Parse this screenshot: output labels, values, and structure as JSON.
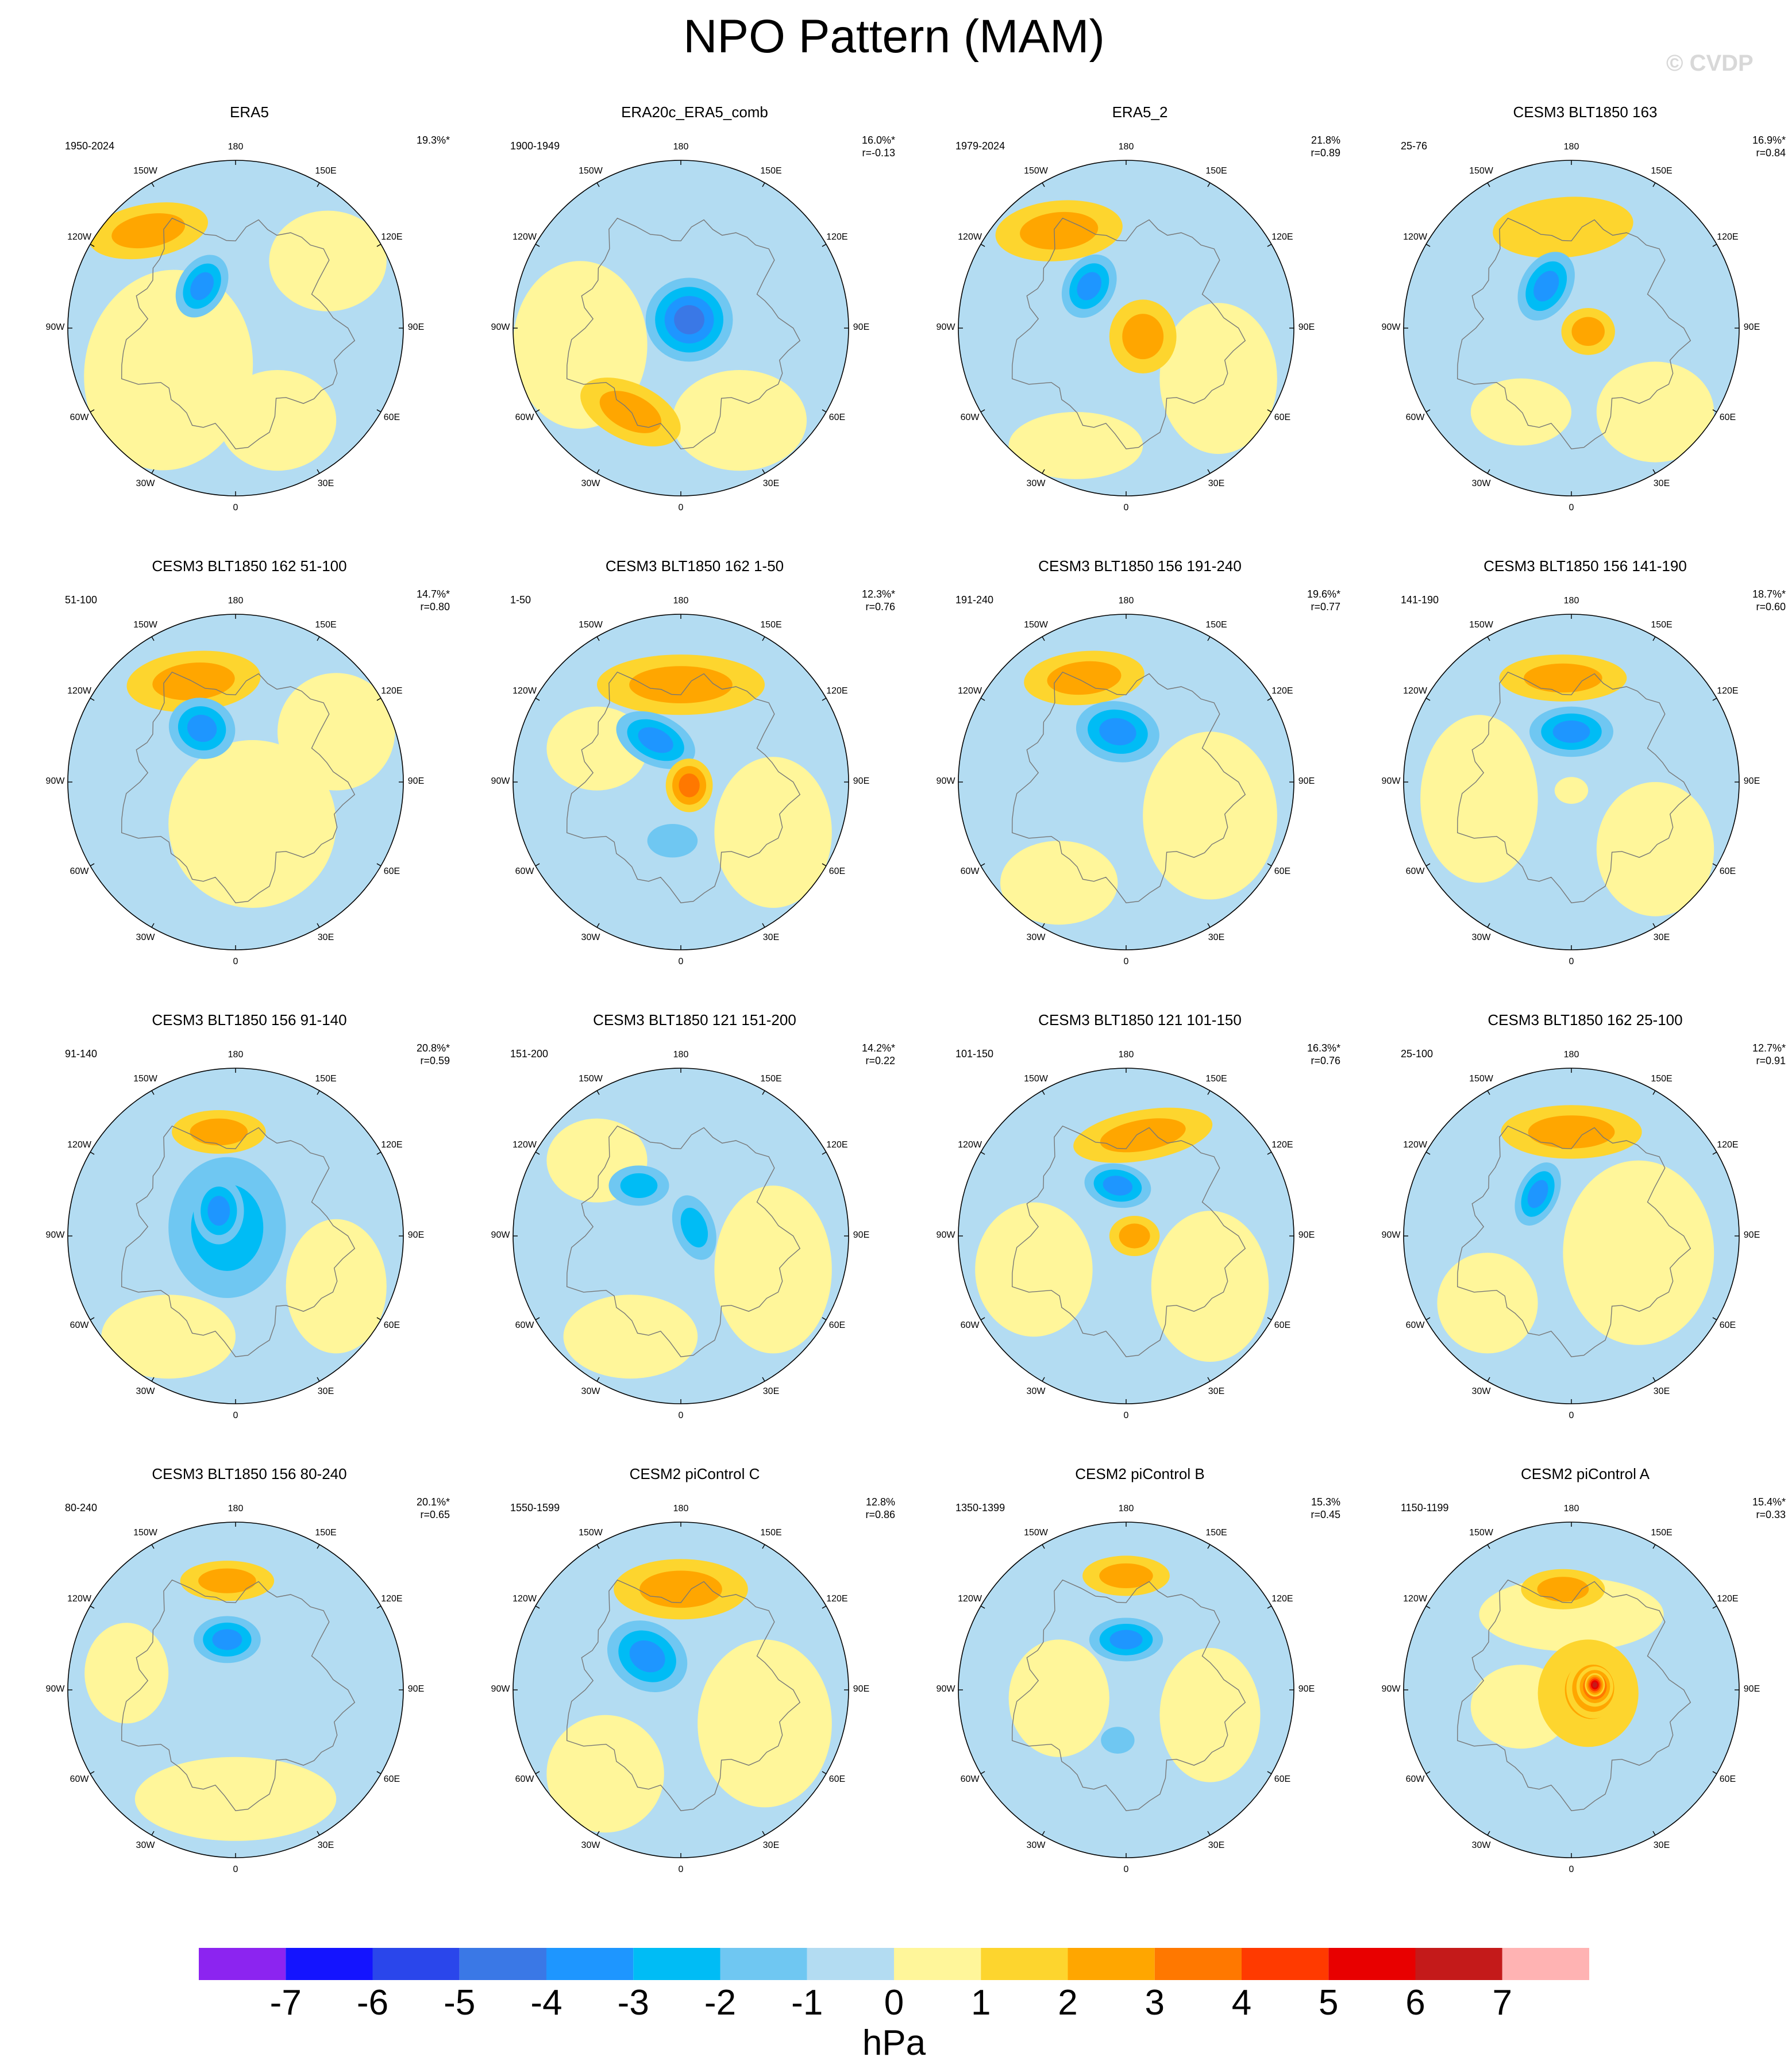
{
  "title": "NPO Pattern (MAM)",
  "watermark": "© CVDP",
  "lon_labels": {
    "n": "180",
    "nne": "150E",
    "ene": "120E",
    "e": "90E",
    "ese": "60E",
    "sse": "30E",
    "s": "0",
    "ssw": "30W",
    "wsw": "60W",
    "w": "90W",
    "wnw": "120W",
    "nnw": "150W"
  },
  "colors": {
    "ocean_background": "#b3dcf2",
    "coastline": "#777777"
  },
  "chart_data": {
    "type": "heatmap",
    "projection": "north polar stereographic",
    "variable": "sea level pressure anomaly",
    "units": "hPa",
    "colorbar": {
      "levels": [
        "-7",
        "-6",
        "-5",
        "-4",
        "-3",
        "-2",
        "-1",
        "0",
        "1",
        "2",
        "3",
        "4",
        "5",
        "6",
        "7"
      ],
      "colors": [
        "#8c24f0",
        "#1414ff",
        "#2a46eb",
        "#3a78e6",
        "#1e96ff",
        "#00bcf5",
        "#6fc7f2",
        "#b3dcf2",
        "#fff69a",
        "#fdd52e",
        "#ffa600",
        "#ff7800",
        "#ff3a00",
        "#e80000",
        "#c41a1a",
        "#ffb3b3"
      ]
    },
    "panels": [
      {
        "title": "ERA5",
        "period": "1950-2024",
        "variance": "19.3%*",
        "r": "",
        "features": [
          {
            "sign": "pos",
            "level": 2,
            "cx": -0.52,
            "cy": -0.58,
            "rx": 0.36,
            "ry": 0.16,
            "rot": -10
          },
          {
            "sign": "neg",
            "level": 3,
            "cx": -0.2,
            "cy": -0.25,
            "rx": 0.14,
            "ry": 0.2,
            "rot": 30
          }
        ],
        "yellow": [
          {
            "cx": -0.4,
            "cy": 0.25,
            "rx": 0.5,
            "ry": 0.6,
            "rot": 10
          },
          {
            "cx": 0.55,
            "cy": -0.4,
            "rx": 0.35,
            "ry": 0.3,
            "rot": 0
          },
          {
            "cx": 0.25,
            "cy": 0.55,
            "rx": 0.35,
            "ry": 0.3,
            "rot": 0
          }
        ]
      },
      {
        "title": "ERA20c_ERA5_comb",
        "period": "1900-1949",
        "variance": "16.0%*",
        "r": "r=-0.13",
        "features": [
          {
            "sign": "pos",
            "level": 2,
            "cx": -0.3,
            "cy": 0.5,
            "rx": 0.32,
            "ry": 0.17,
            "rot": 25
          },
          {
            "sign": "neg",
            "level": 4,
            "cx": 0.05,
            "cy": -0.05,
            "rx": 0.26,
            "ry": 0.25,
            "rot": 0
          }
        ],
        "yellow": [
          {
            "cx": -0.6,
            "cy": 0.1,
            "rx": 0.4,
            "ry": 0.5,
            "rot": 0
          },
          {
            "cx": 0.35,
            "cy": 0.55,
            "rx": 0.4,
            "ry": 0.3,
            "rot": 0
          }
        ]
      },
      {
        "title": "ERA5_2",
        "period": "1979-2024",
        "variance": "21.8%",
        "r": "r=0.89",
        "features": [
          {
            "sign": "pos",
            "level": 2,
            "cx": -0.4,
            "cy": -0.58,
            "rx": 0.38,
            "ry": 0.18,
            "rot": -5
          },
          {
            "sign": "neg",
            "level": 3,
            "cx": -0.22,
            "cy": -0.25,
            "rx": 0.15,
            "ry": 0.2,
            "rot": 30
          },
          {
            "sign": "pos",
            "level": 2,
            "cx": 0.1,
            "cy": 0.05,
            "rx": 0.2,
            "ry": 0.22,
            "rot": 0
          }
        ],
        "yellow": [
          {
            "cx": 0.55,
            "cy": 0.3,
            "rx": 0.35,
            "ry": 0.45,
            "rot": 0
          },
          {
            "cx": -0.3,
            "cy": 0.7,
            "rx": 0.4,
            "ry": 0.2,
            "rot": 0
          }
        ]
      },
      {
        "title": "CESM3 BLT1850 163",
        "period": "25-76",
        "variance": "16.9%*",
        "r": "r=0.84",
        "features": [
          {
            "sign": "pos",
            "level": 1,
            "cx": -0.05,
            "cy": -0.6,
            "rx": 0.42,
            "ry": 0.18,
            "rot": -5
          },
          {
            "sign": "neg",
            "level": 3,
            "cx": -0.15,
            "cy": -0.25,
            "rx": 0.15,
            "ry": 0.22,
            "rot": 30
          },
          {
            "sign": "pos",
            "level": 2,
            "cx": 0.1,
            "cy": 0.02,
            "rx": 0.16,
            "ry": 0.14,
            "rot": 0
          }
        ],
        "yellow": [
          {
            "cx": 0.5,
            "cy": 0.5,
            "rx": 0.35,
            "ry": 0.3,
            "rot": 0
          },
          {
            "cx": -0.3,
            "cy": 0.5,
            "rx": 0.3,
            "ry": 0.2,
            "rot": 0
          }
        ]
      },
      {
        "title": "CESM3 BLT1850 162 51-100",
        "period": "51-100",
        "variance": "14.7%*",
        "r": "r=0.80",
        "features": [
          {
            "sign": "pos",
            "level": 2,
            "cx": -0.25,
            "cy": -0.6,
            "rx": 0.4,
            "ry": 0.18,
            "rot": -5
          },
          {
            "sign": "neg",
            "level": 3,
            "cx": -0.2,
            "cy": -0.32,
            "rx": 0.2,
            "ry": 0.18,
            "rot": 20
          }
        ],
        "yellow": [
          {
            "cx": 0.1,
            "cy": 0.25,
            "rx": 0.5,
            "ry": 0.5,
            "rot": 0
          },
          {
            "cx": 0.6,
            "cy": -0.3,
            "rx": 0.35,
            "ry": 0.35,
            "rot": 0
          }
        ]
      },
      {
        "title": "CESM3 BLT1850 162 1-50",
        "period": "1-50",
        "variance": "12.3%*",
        "r": "r=0.76",
        "features": [
          {
            "sign": "pos",
            "level": 2,
            "cx": 0.0,
            "cy": -0.58,
            "rx": 0.5,
            "ry": 0.18,
            "rot": 0
          },
          {
            "sign": "neg",
            "level": 3,
            "cx": -0.15,
            "cy": -0.25,
            "rx": 0.25,
            "ry": 0.15,
            "rot": 25
          },
          {
            "sign": "pos",
            "level": 3,
            "cx": 0.05,
            "cy": 0.02,
            "rx": 0.14,
            "ry": 0.16,
            "rot": 0
          },
          {
            "sign": "neg",
            "level": 1,
            "cx": -0.05,
            "cy": 0.35,
            "rx": 0.15,
            "ry": 0.1,
            "rot": 0
          }
        ],
        "yellow": [
          {
            "cx": 0.55,
            "cy": 0.3,
            "rx": 0.35,
            "ry": 0.45,
            "rot": 0
          },
          {
            "cx": -0.5,
            "cy": -0.2,
            "rx": 0.3,
            "ry": 0.25,
            "rot": 0
          }
        ]
      },
      {
        "title": "CESM3 BLT1850 156 191-240",
        "period": "191-240",
        "variance": "19.6%*",
        "r": "r=0.77",
        "features": [
          {
            "sign": "pos",
            "level": 2,
            "cx": -0.25,
            "cy": -0.62,
            "rx": 0.36,
            "ry": 0.16,
            "rot": -5
          },
          {
            "sign": "neg",
            "level": 3,
            "cx": -0.05,
            "cy": -0.3,
            "rx": 0.25,
            "ry": 0.18,
            "rot": 10
          }
        ],
        "yellow": [
          {
            "cx": 0.5,
            "cy": 0.2,
            "rx": 0.4,
            "ry": 0.5,
            "rot": 0
          },
          {
            "cx": -0.4,
            "cy": 0.6,
            "rx": 0.35,
            "ry": 0.25,
            "rot": 0
          }
        ]
      },
      {
        "title": "CESM3 BLT1850 156 141-190",
        "period": "141-190",
        "variance": "18.7%*",
        "r": "r=0.60",
        "features": [
          {
            "sign": "pos",
            "level": 2,
            "cx": -0.05,
            "cy": -0.62,
            "rx": 0.38,
            "ry": 0.14,
            "rot": 0
          },
          {
            "sign": "neg",
            "level": 3,
            "cx": 0.0,
            "cy": -0.3,
            "rx": 0.25,
            "ry": 0.15,
            "rot": 0
          }
        ],
        "yellow": [
          {
            "cx": -0.55,
            "cy": 0.1,
            "rx": 0.35,
            "ry": 0.5,
            "rot": 0
          },
          {
            "cx": 0.5,
            "cy": 0.4,
            "rx": 0.35,
            "ry": 0.4,
            "rot": 0
          },
          {
            "cx": 0.0,
            "cy": 0.05,
            "rx": 0.1,
            "ry": 0.08,
            "rot": 0
          }
        ]
      },
      {
        "title": "CESM3 BLT1850 156 91-140",
        "period": "91-140",
        "variance": "20.8%*",
        "r": "r=0.59",
        "features": [
          {
            "sign": "pos",
            "level": 2,
            "cx": -0.1,
            "cy": -0.62,
            "rx": 0.28,
            "ry": 0.13,
            "rot": 0
          },
          {
            "sign": "neg",
            "level": 2,
            "cx": -0.05,
            "cy": -0.05,
            "rx": 0.35,
            "ry": 0.42,
            "rot": 0
          },
          {
            "sign": "neg",
            "level": 3,
            "cx": -0.1,
            "cy": -0.15,
            "rx": 0.15,
            "ry": 0.2,
            "rot": 0
          }
        ],
        "yellow": [
          {
            "cx": 0.6,
            "cy": 0.3,
            "rx": 0.3,
            "ry": 0.4,
            "rot": 0
          },
          {
            "cx": -0.4,
            "cy": 0.6,
            "rx": 0.4,
            "ry": 0.25,
            "rot": 0
          }
        ]
      },
      {
        "title": "CESM3 BLT1850 121 151-200",
        "period": "151-200",
        "variance": "14.2%*",
        "r": "r=0.22",
        "features": [
          {
            "sign": "neg",
            "level": 2,
            "cx": -0.25,
            "cy": -0.3,
            "rx": 0.18,
            "ry": 0.12,
            "rot": 0
          },
          {
            "sign": "neg",
            "level": 2,
            "cx": 0.08,
            "cy": -0.05,
            "rx": 0.12,
            "ry": 0.2,
            "rot": -20
          }
        ],
        "yellow": [
          {
            "cx": -0.5,
            "cy": -0.45,
            "rx": 0.3,
            "ry": 0.25,
            "rot": 0
          },
          {
            "cx": 0.55,
            "cy": 0.2,
            "rx": 0.35,
            "ry": 0.5,
            "rot": 0
          },
          {
            "cx": -0.3,
            "cy": 0.6,
            "rx": 0.4,
            "ry": 0.25,
            "rot": 0
          }
        ]
      },
      {
        "title": "CESM3 BLT1850 121 101-150",
        "period": "101-150",
        "variance": "16.3%*",
        "r": "r=0.76",
        "features": [
          {
            "sign": "pos",
            "level": 2,
            "cx": 0.1,
            "cy": -0.6,
            "rx": 0.42,
            "ry": 0.15,
            "rot": -10
          },
          {
            "sign": "neg",
            "level": 3,
            "cx": -0.05,
            "cy": -0.3,
            "rx": 0.2,
            "ry": 0.13,
            "rot": 10
          },
          {
            "sign": "pos",
            "level": 2,
            "cx": 0.05,
            "cy": 0.0,
            "rx": 0.15,
            "ry": 0.12,
            "rot": 0
          }
        ],
        "yellow": [
          {
            "cx": -0.55,
            "cy": 0.2,
            "rx": 0.35,
            "ry": 0.4,
            "rot": 0
          },
          {
            "cx": 0.5,
            "cy": 0.3,
            "rx": 0.35,
            "ry": 0.45,
            "rot": 0
          }
        ]
      },
      {
        "title": "CESM3 BLT1850 162 25-100",
        "period": "25-100",
        "variance": "12.7%*",
        "r": "r=0.91",
        "features": [
          {
            "sign": "pos",
            "level": 2,
            "cx": 0.0,
            "cy": -0.62,
            "rx": 0.42,
            "ry": 0.16,
            "rot": 0
          },
          {
            "sign": "neg",
            "level": 3,
            "cx": -0.2,
            "cy": -0.25,
            "rx": 0.12,
            "ry": 0.2,
            "rot": 25
          }
        ],
        "yellow": [
          {
            "cx": 0.4,
            "cy": 0.1,
            "rx": 0.45,
            "ry": 0.55,
            "rot": 0
          },
          {
            "cx": -0.5,
            "cy": 0.4,
            "rx": 0.3,
            "ry": 0.3,
            "rot": 0
          }
        ]
      },
      {
        "title": "CESM3 BLT1850 156 80-240",
        "period": "80-240",
        "variance": "20.1%*",
        "r": "r=0.65",
        "features": [
          {
            "sign": "pos",
            "level": 2,
            "cx": -0.05,
            "cy": -0.65,
            "rx": 0.28,
            "ry": 0.12,
            "rot": 0
          },
          {
            "sign": "neg",
            "level": 3,
            "cx": -0.05,
            "cy": -0.3,
            "rx": 0.2,
            "ry": 0.14,
            "rot": 0
          }
        ],
        "yellow": [
          {
            "cx": 0.0,
            "cy": 0.65,
            "rx": 0.6,
            "ry": 0.25,
            "rot": 0
          },
          {
            "cx": -0.65,
            "cy": -0.1,
            "rx": 0.25,
            "ry": 0.3,
            "rot": 0
          }
        ]
      },
      {
        "title": "CESM2 piControl C",
        "period": "1550-1599",
        "variance": "12.8%",
        "r": "r=0.86",
        "features": [
          {
            "sign": "pos",
            "level": 2,
            "cx": 0.0,
            "cy": -0.6,
            "rx": 0.4,
            "ry": 0.18,
            "rot": 0
          },
          {
            "sign": "neg",
            "level": 3,
            "cx": -0.2,
            "cy": -0.2,
            "rx": 0.25,
            "ry": 0.2,
            "rot": 30
          }
        ],
        "yellow": [
          {
            "cx": 0.5,
            "cy": 0.2,
            "rx": 0.4,
            "ry": 0.5,
            "rot": 0
          },
          {
            "cx": -0.45,
            "cy": 0.5,
            "rx": 0.35,
            "ry": 0.35,
            "rot": 0
          }
        ]
      },
      {
        "title": "CESM2 piControl B",
        "period": "1350-1399",
        "variance": "15.3%",
        "r": "r=0.45",
        "features": [
          {
            "sign": "pos",
            "level": 2,
            "cx": 0.0,
            "cy": -0.68,
            "rx": 0.26,
            "ry": 0.12,
            "rot": 0
          },
          {
            "sign": "neg",
            "level": 3,
            "cx": 0.0,
            "cy": -0.3,
            "rx": 0.22,
            "ry": 0.13,
            "rot": 0
          },
          {
            "sign": "neg",
            "level": 1,
            "cx": -0.05,
            "cy": 0.3,
            "rx": 0.1,
            "ry": 0.08,
            "rot": 0
          }
        ],
        "yellow": [
          {
            "cx": -0.4,
            "cy": 0.05,
            "rx": 0.3,
            "ry": 0.35,
            "rot": 0
          },
          {
            "cx": 0.5,
            "cy": 0.15,
            "rx": 0.3,
            "ry": 0.4,
            "rot": 0
          }
        ]
      },
      {
        "title": "CESM2 piControl A",
        "period": "1150-1199",
        "variance": "15.4%*",
        "r": "r=0.33",
        "features": [
          {
            "sign": "pos",
            "level": 2,
            "cx": -0.05,
            "cy": -0.6,
            "rx": 0.25,
            "ry": 0.12,
            "rot": 0
          },
          {
            "sign": "pos",
            "level": 2,
            "cx": 0.1,
            "cy": 0.02,
            "rx": 0.3,
            "ry": 0.32,
            "rot": 0
          },
          {
            "sign": "pos",
            "level": 3,
            "cx": 0.12,
            "cy": 0.0,
            "rx": 0.22,
            "ry": 0.24,
            "rot": 0
          },
          {
            "sign": "pos",
            "level": 4,
            "cx": 0.13,
            "cy": -0.01,
            "rx": 0.16,
            "ry": 0.18,
            "rot": 0
          },
          {
            "sign": "pos",
            "level": 5,
            "cx": 0.14,
            "cy": -0.02,
            "rx": 0.11,
            "ry": 0.12,
            "rot": 0
          },
          {
            "sign": "pos",
            "level": 6,
            "cx": 0.14,
            "cy": -0.03,
            "rx": 0.06,
            "ry": 0.07,
            "rot": 0
          }
        ],
        "yellow": [
          {
            "cx": 0.0,
            "cy": -0.45,
            "rx": 0.55,
            "ry": 0.22,
            "rot": 0
          },
          {
            "cx": -0.3,
            "cy": 0.1,
            "rx": 0.3,
            "ry": 0.25,
            "rot": 0
          }
        ]
      }
    ]
  }
}
